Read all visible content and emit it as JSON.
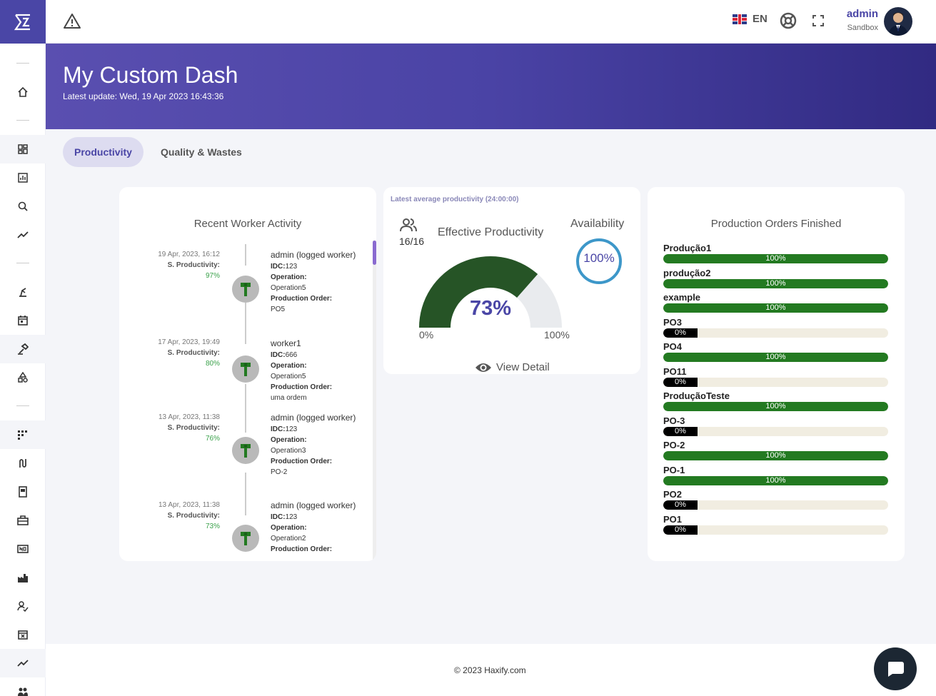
{
  "header": {
    "language": "EN",
    "user_name": "admin",
    "user_role": "Sandbox"
  },
  "banner": {
    "title": "My Custom Dash",
    "latest_update": "Latest update: Wed, 19 Apr 2023 16:43:36"
  },
  "tabs": [
    {
      "label": "Productivity",
      "active": true
    },
    {
      "label": "Quality & Wastes",
      "active": false
    }
  ],
  "worker_activity": {
    "title": "Recent Worker Activity",
    "items": [
      {
        "date": "19 Apr, 2023, 16:12",
        "prod_label": "S. Productivity:",
        "prod": "97%",
        "worker": "admin (logged worker)",
        "idc_label": "IDC:",
        "idc": "123",
        "op_label": "Operation:",
        "operation": "Operation5",
        "po_label": "Production Order:",
        "po": "PO5"
      },
      {
        "date": "17 Apr, 2023, 19:49",
        "prod_label": "S. Productivity:",
        "prod": "80%",
        "worker": "worker1",
        "idc_label": "IDC:",
        "idc": "666",
        "op_label": "Operation:",
        "operation": "Operation5",
        "po_label": "Production Order:",
        "po": "uma ordem"
      },
      {
        "date": "13 Apr, 2023, 11:38",
        "prod_label": "S. Productivity:",
        "prod": "76%",
        "worker": "admin (logged worker)",
        "idc_label": "IDC:",
        "idc": "123",
        "op_label": "Operation:",
        "operation": "Operation3",
        "po_label": "Production Order:",
        "po": "PO-2"
      },
      {
        "date": "13 Apr, 2023, 11:38",
        "prod_label": "S. Productivity:",
        "prod": "73%",
        "worker": "admin (logged worker)",
        "idc_label": "IDC:",
        "idc": "123",
        "op_label": "Operation:",
        "operation": "Operation2",
        "po_label": "Production Order:",
        "po": ""
      }
    ]
  },
  "productivity": {
    "caption": "Latest average productivity (24:00:00)",
    "workers": "16/16",
    "effective_label": "Effective Productivity",
    "effective_value": "73%",
    "effective_fraction": 0.73,
    "gauge_min": "0%",
    "gauge_max": "100%",
    "availability_label": "Availability",
    "availability_value": "100%",
    "view_detail": "View Detail"
  },
  "production_orders": {
    "title": "Production Orders Finished",
    "items": [
      {
        "name": "Produção1",
        "value": 100,
        "label": "100%"
      },
      {
        "name": "produção2",
        "value": 100,
        "label": "100%"
      },
      {
        "name": "example",
        "value": 100,
        "label": "100%"
      },
      {
        "name": "PO3",
        "value": 0,
        "label": "0%"
      },
      {
        "name": "PO4",
        "value": 100,
        "label": "100%"
      },
      {
        "name": "PO11",
        "value": 0,
        "label": "0%"
      },
      {
        "name": "ProduçãoTeste",
        "value": 100,
        "label": "100%"
      },
      {
        "name": "PO-3",
        "value": 0,
        "label": "0%"
      },
      {
        "name": "PO-2",
        "value": 100,
        "label": "100%"
      },
      {
        "name": "PO-1",
        "value": 100,
        "label": "100%"
      },
      {
        "name": "PO2",
        "value": 0,
        "label": "0%"
      },
      {
        "name": "PO1",
        "value": 0,
        "label": "0%"
      }
    ]
  },
  "footer": {
    "copyright": "© 2023 Haxify.com"
  },
  "colors": {
    "brand": "#4a46a6",
    "gauge_fill": "#265426",
    "bar_fill": "#237a21",
    "availability_ring": "#3d97c9"
  },
  "sidebar_icons": [
    "home-icon",
    "dashboard-icon",
    "report-icon",
    "search-analytics-icon",
    "trend-icon",
    "machine-icon",
    "calendar-icon",
    "hammer-icon",
    "shapes-icon",
    "grid-icon",
    "route-icon",
    "document-icon",
    "toolbox-icon",
    "nfc-icon",
    "factory-icon",
    "worker-icon",
    "calendar-x-icon",
    "chart-line-icon",
    "team-icon"
  ]
}
